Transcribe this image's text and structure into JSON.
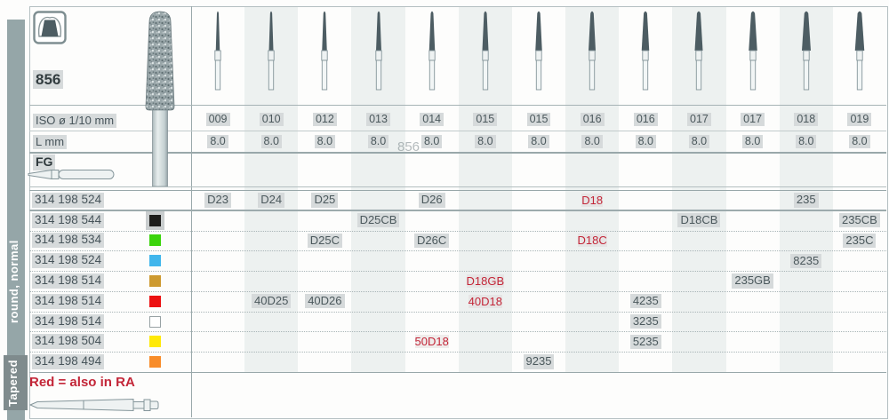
{
  "palette": {
    "sidebar": "#95a6a8",
    "sidebar_badge": "#7f8b8d",
    "band": "#edf1f0",
    "grid_line": "#99a8aa",
    "text": "#4b585c",
    "red": "#c32638",
    "highlight": "#d6dadb",
    "bur_dark": "#4d5d63"
  },
  "sidebar": {
    "category_label": "round, normal",
    "shape_label": "Tapered"
  },
  "header": {
    "figure_number": "856",
    "iso_label": "ISO ø 1/10 mm",
    "l_label": "L mm",
    "shank_label": "FG",
    "ghost_text": "856"
  },
  "grid": {
    "iso_values": [
      "009",
      "010",
      "012",
      "013",
      "014",
      "015",
      "015",
      "016",
      "016",
      "017",
      "017",
      "018",
      "019"
    ],
    "l_values": [
      "8.0",
      "8.0",
      "8.0",
      "8.0",
      "8.0",
      "8.0",
      "8.0",
      "8.0",
      "8.0",
      "8.0",
      "8.0",
      "8.0",
      "8.0"
    ],
    "banded_columns": [
      1,
      3,
      5,
      7,
      9,
      11
    ]
  },
  "products": [
    {
      "order_no": "314 198 524",
      "color": "none",
      "color_name": "none",
      "cells": [
        {
          "col": 0,
          "code": "D23"
        },
        {
          "col": 1,
          "code": "D24"
        },
        {
          "col": 2,
          "code": "D25"
        },
        {
          "col": 4,
          "code": "D26"
        },
        {
          "col": 7,
          "code": "D18",
          "red": true
        },
        {
          "col": 11,
          "code": "235"
        }
      ]
    },
    {
      "order_no": "314 198 544",
      "color": "#1d1d1b",
      "color_name": "black",
      "cells": [
        {
          "col": 3,
          "code": "D25CB"
        },
        {
          "col": 9,
          "code": "D18CB"
        },
        {
          "col": 12,
          "code": "235CB"
        }
      ]
    },
    {
      "order_no": "314 198 534",
      "color": "#3bd40c",
      "color_name": "green",
      "cells": [
        {
          "col": 2,
          "code": "D25C"
        },
        {
          "col": 4,
          "code": "D26C"
        },
        {
          "col": 7,
          "code": "D18C",
          "red": true
        },
        {
          "col": 12,
          "code": "235C"
        }
      ]
    },
    {
      "order_no": "314 198 524",
      "color": "#41b6ec",
      "color_name": "blue",
      "cells": [
        {
          "col": 11,
          "code": "8235"
        }
      ]
    },
    {
      "order_no": "314 198 514",
      "color": "#cd9a30",
      "color_name": "gold",
      "cells": [
        {
          "col": 5,
          "code": "D18GB",
          "red": true
        },
        {
          "col": 10,
          "code": "235GB"
        }
      ]
    },
    {
      "order_no": "314 198 514",
      "color": "#ec1111",
      "color_name": "red",
      "cells": [
        {
          "col": 1,
          "code": "40D25"
        },
        {
          "col": 2,
          "code": "40D26"
        },
        {
          "col": 5,
          "code": "40D18",
          "red": true
        },
        {
          "col": 8,
          "code": "4235"
        }
      ]
    },
    {
      "order_no": "314 198 514",
      "color": "#ffffff",
      "color_name": "white",
      "cells": [
        {
          "col": 8,
          "code": "3235"
        }
      ]
    },
    {
      "order_no": "314 198 504",
      "color": "#ffe908",
      "color_name": "yellow",
      "cells": [
        {
          "col": 4,
          "code": "50D18",
          "red": true
        },
        {
          "col": 8,
          "code": "5235"
        }
      ]
    },
    {
      "order_no": "314 198 494",
      "color": "#f88d2a",
      "color_name": "orange",
      "cells": [
        {
          "col": 6,
          "code": "9235"
        }
      ]
    }
  ],
  "footer": {
    "note": "Red = also in RA"
  }
}
